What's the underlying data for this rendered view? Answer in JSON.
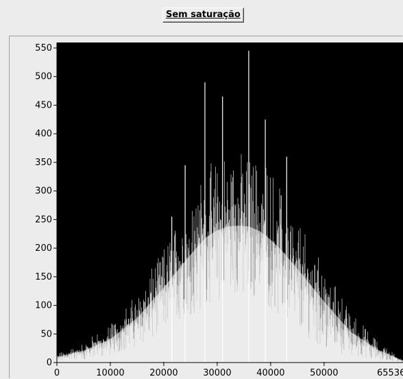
{
  "header": {
    "title": "Sem saturação"
  },
  "chart_data": {
    "type": "bar",
    "title": "Sem saturação",
    "xlabel": "",
    "ylabel": "",
    "xlim": [
      0,
      65536
    ],
    "ylim": [
      0,
      550
    ],
    "xticks": [
      0,
      10000,
      20000,
      30000,
      40000,
      50000,
      65536
    ],
    "yticks": [
      0,
      50,
      100,
      150,
      200,
      250,
      300,
      350,
      400,
      450,
      500,
      550
    ],
    "background": "#000000",
    "bar_color": "#ffffff",
    "grid": false,
    "legend": "none",
    "envelope": {
      "x": [
        0,
        5000,
        10000,
        15000,
        20000,
        25000,
        28000,
        30000,
        32000,
        34000,
        36000,
        38000,
        40000,
        42000,
        45000,
        50000,
        55000,
        60000,
        65536
      ],
      "lower": [
        2,
        5,
        12,
        28,
        50,
        80,
        100,
        108,
        115,
        118,
        115,
        108,
        95,
        80,
        55,
        25,
        10,
        4,
        0
      ],
      "upper": [
        12,
        25,
        50,
        95,
        160,
        230,
        268,
        282,
        290,
        292,
        290,
        280,
        262,
        240,
        200,
        130,
        65,
        28,
        0
      ],
      "max": [
        15,
        35,
        70,
        120,
        200,
        290,
        345,
        360,
        365,
        370,
        365,
        355,
        340,
        310,
        260,
        170,
        90,
        38,
        0
      ]
    },
    "spikes": [
      {
        "x": 21500,
        "value": 255
      },
      {
        "x": 24000,
        "value": 345
      },
      {
        "x": 27700,
        "value": 490
      },
      {
        "x": 31000,
        "value": 465
      },
      {
        "x": 35900,
        "value": 545
      },
      {
        "x": 39000,
        "value": 425
      },
      {
        "x": 43000,
        "value": 360
      }
    ]
  }
}
